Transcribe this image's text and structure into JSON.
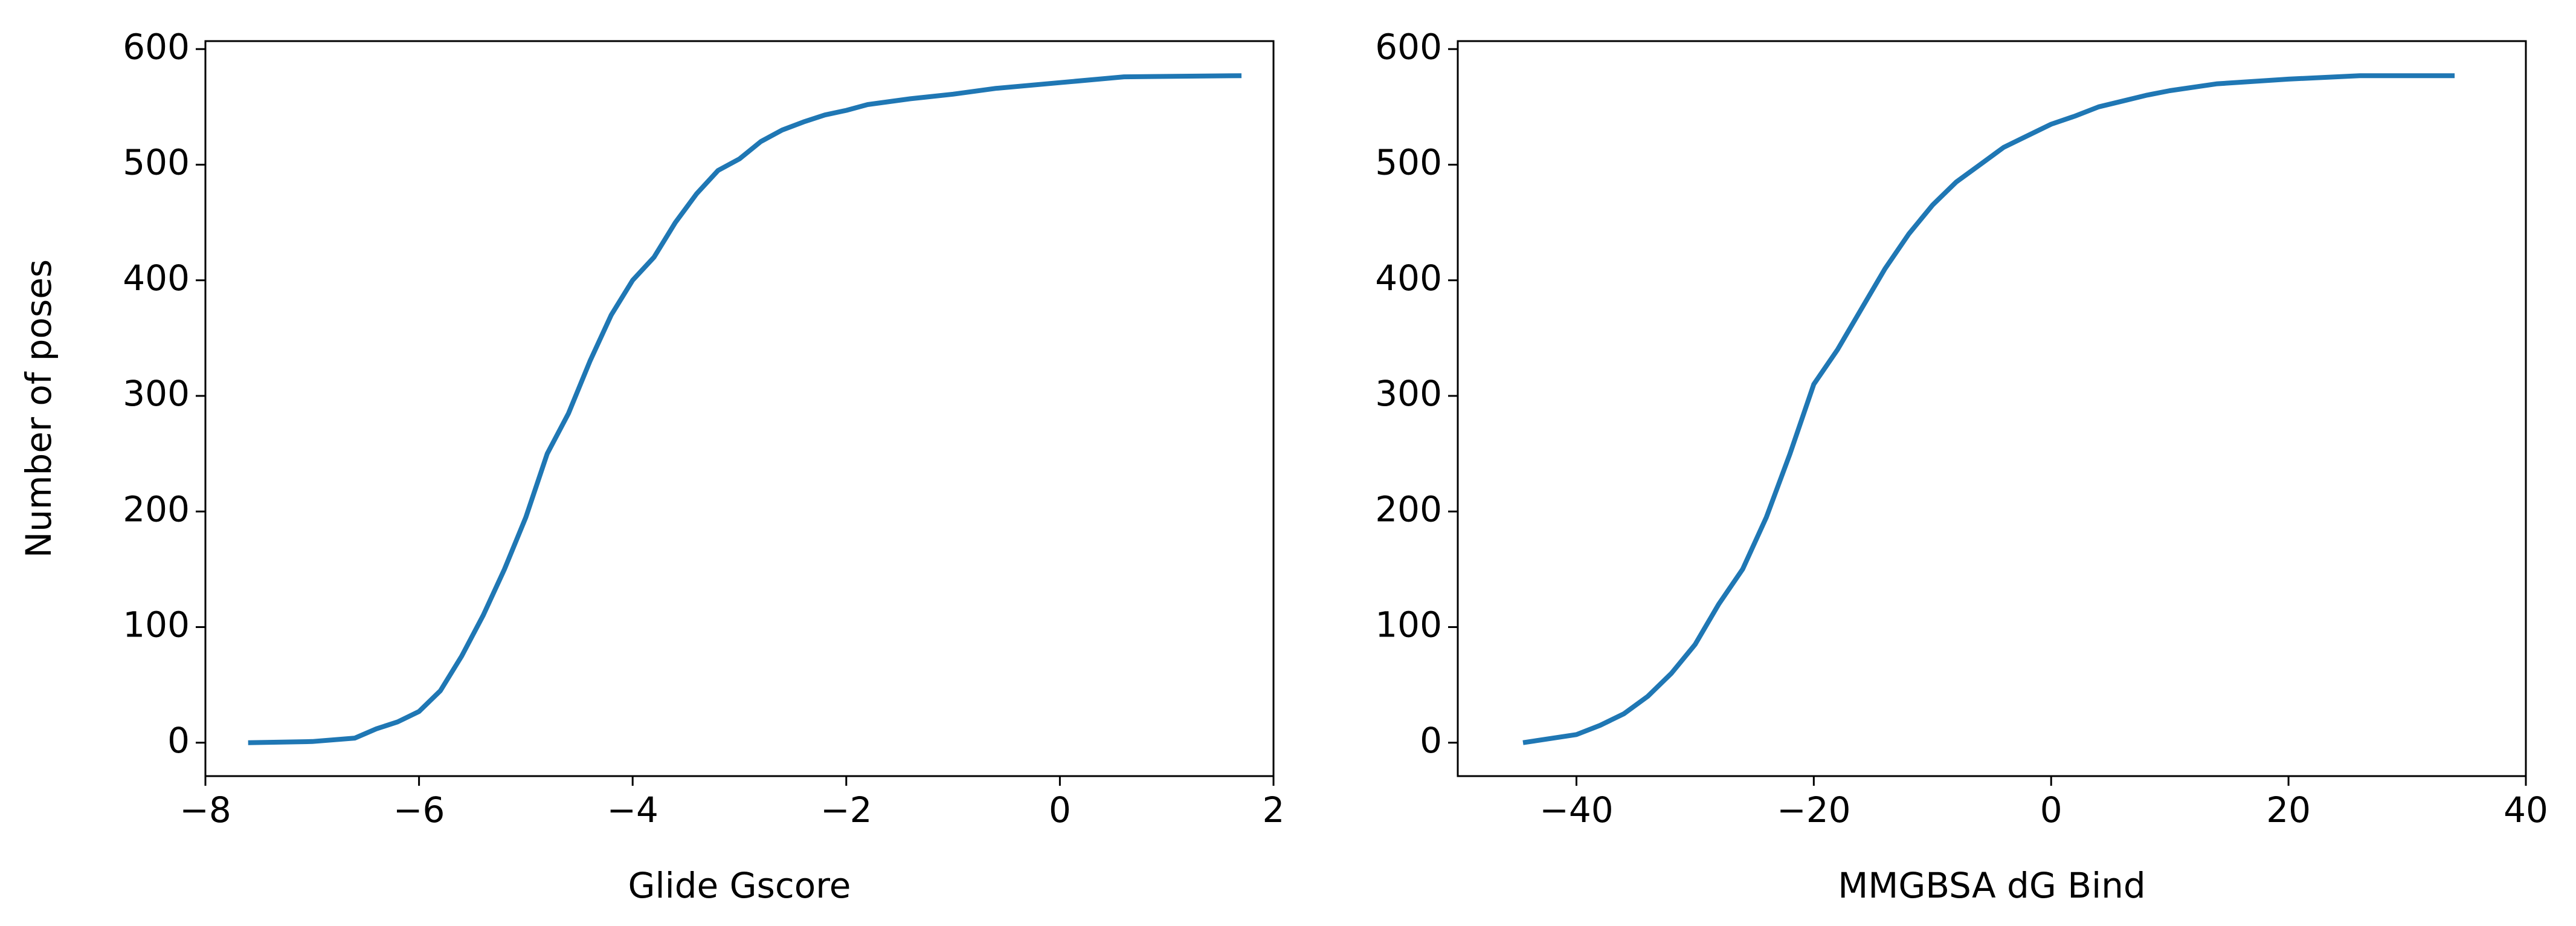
{
  "chart_data": [
    {
      "type": "line",
      "xlabel": "Glide Gscore",
      "ylabel": "Number of poses",
      "xlim": [
        -8,
        2
      ],
      "ylim": [
        -28.9,
        606.9
      ],
      "xticks": [
        {
          "value": -8,
          "label": "−8"
        },
        {
          "value": -6,
          "label": "−6"
        },
        {
          "value": -4,
          "label": "−4"
        },
        {
          "value": -2,
          "label": "−2"
        },
        0,
        2
      ],
      "yticks": [
        0,
        100,
        200,
        300,
        400,
        500,
        600
      ],
      "series": [
        {
          "color": "#1f77b4",
          "x": [
            -7.6,
            -7,
            -6.6,
            -6.4,
            -6.2,
            -6,
            -5.8,
            -5.6,
            -5.4,
            -5.2,
            -5,
            -4.8,
            -4.6,
            -4.4,
            -4.2,
            -4,
            -3.8,
            -3.6,
            -3.4,
            -3.2,
            -3,
            -2.8,
            -2.6,
            -2.4,
            -2.2,
            -2,
            -1.8,
            -1.4,
            -1,
            -0.6,
            0,
            0.6,
            1.7
          ],
          "values": [
            0,
            1,
            4,
            12,
            18,
            27,
            45,
            75,
            110,
            150,
            195,
            250,
            285,
            330,
            370,
            400,
            420,
            450,
            475,
            495,
            505,
            520,
            530,
            537,
            543,
            547,
            552,
            557,
            561,
            566,
            571,
            576,
            577
          ]
        }
      ]
    },
    {
      "type": "line",
      "xlabel": "MMGBSA dG Bind",
      "xlim": [
        -50,
        40
      ],
      "ylim": [
        -28.9,
        606.9
      ],
      "xticks": [
        {
          "value": -40,
          "label": "−40"
        },
        {
          "value": -20,
          "label": "−20"
        },
        0,
        20,
        40
      ],
      "yticks": [
        0,
        100,
        200,
        300,
        400,
        500,
        600
      ],
      "series": [
        {
          "color": "#1f77b4",
          "x": [
            -44.5,
            -40,
            -38,
            -36,
            -34,
            -32,
            -30,
            -28,
            -26,
            -24,
            -22,
            -20,
            -18,
            -16,
            -14,
            -12,
            -10,
            -8,
            -6,
            -4,
            -2,
            0,
            2,
            4,
            6,
            8,
            10,
            14,
            20,
            26,
            34
          ],
          "values": [
            0,
            7,
            15,
            25,
            40,
            60,
            85,
            120,
            150,
            195,
            250,
            310,
            340,
            375,
            410,
            440,
            465,
            485,
            500,
            515,
            525,
            535,
            542,
            550,
            555,
            560,
            564,
            570,
            574,
            577,
            577
          ]
        }
      ]
    }
  ]
}
